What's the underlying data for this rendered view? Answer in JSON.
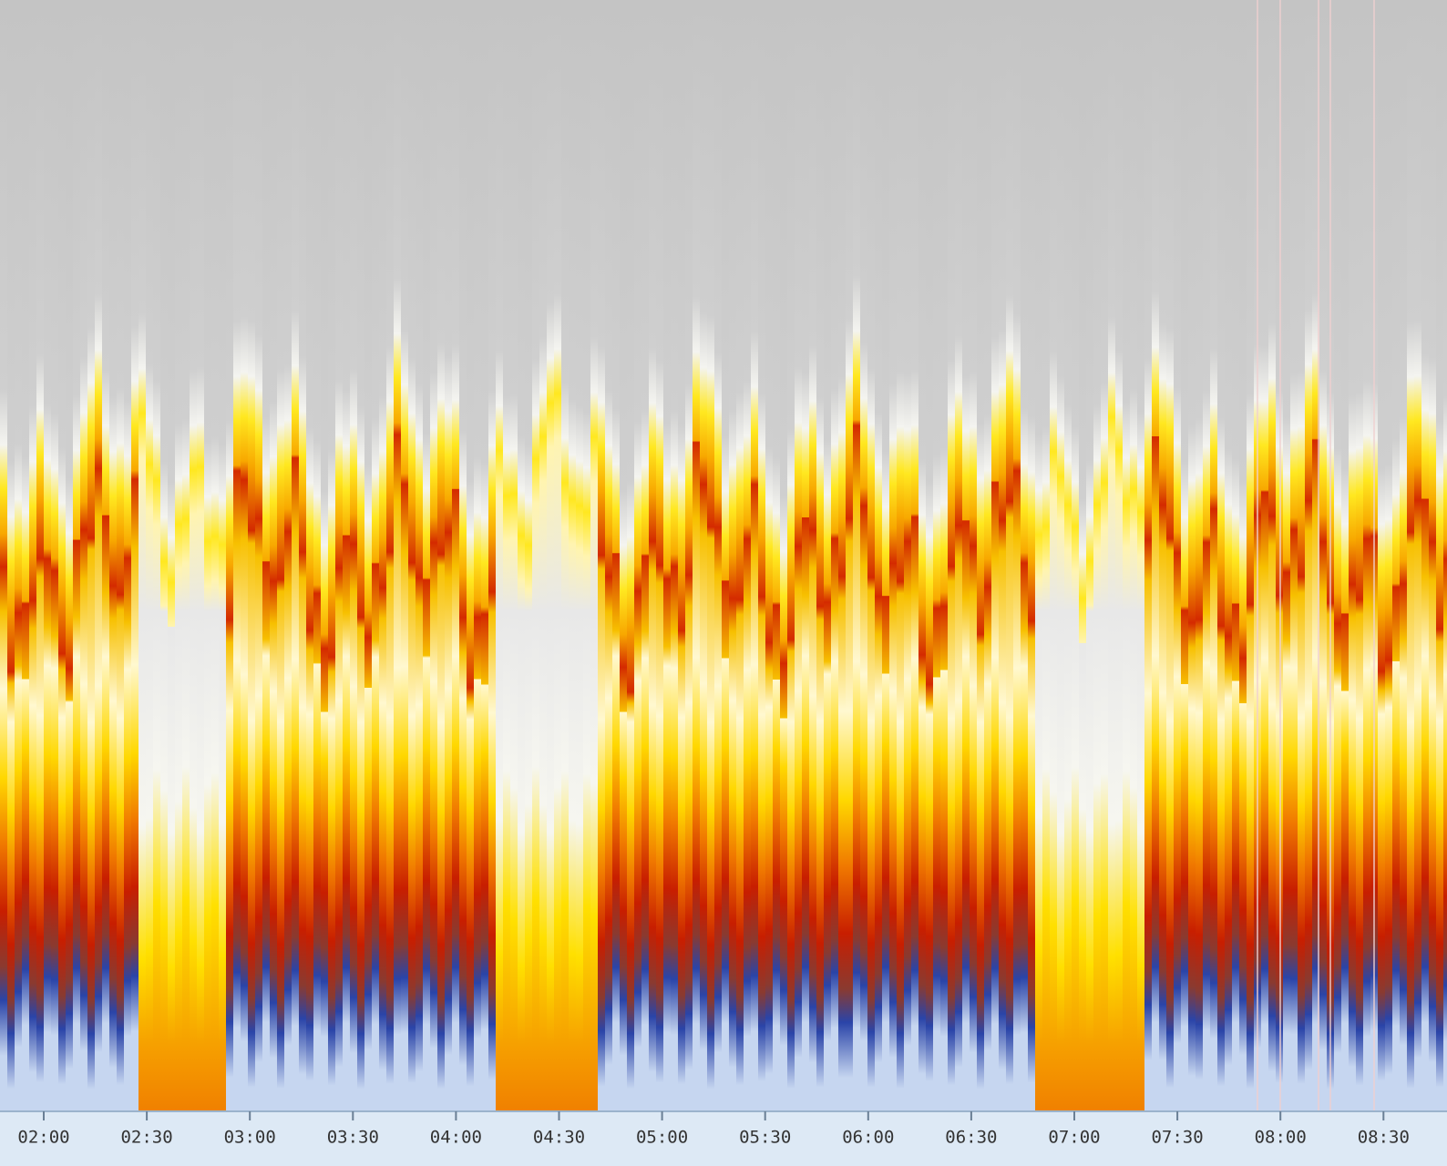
{
  "time_axis": {
    "labels": [
      "02:00",
      "02:30",
      "03:00",
      "03:30",
      "04:00",
      "04:30",
      "05:00",
      "05:30",
      "06:00",
      "06:30",
      "07:00",
      "07:30",
      "08:00",
      "08:30"
    ]
  }
}
